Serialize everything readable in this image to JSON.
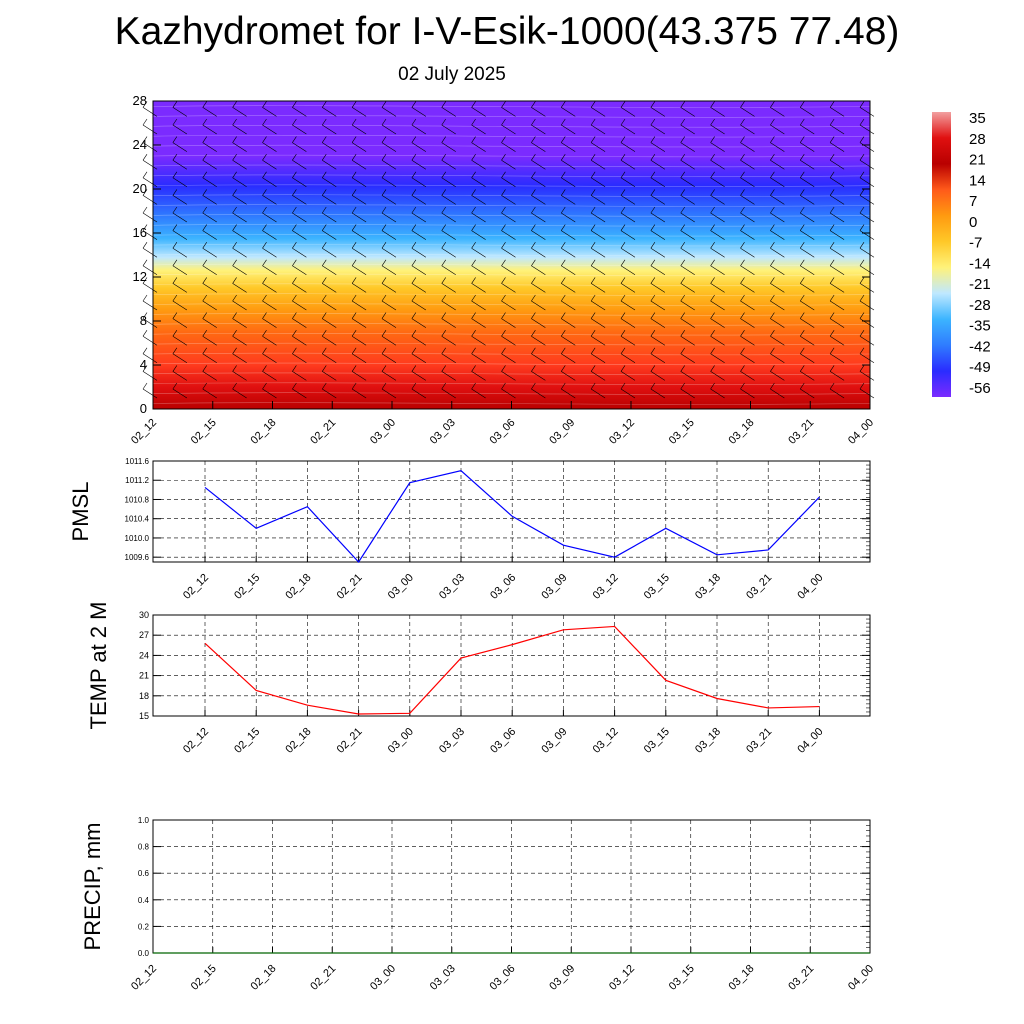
{
  "header": {
    "title": "Kazhydromet for I-V-Esik-1000(43.375 77.48)",
    "date": "02 July 2025"
  },
  "chart_data": [
    {
      "type": "heatmap",
      "title": "",
      "xlabel": "",
      "ylabel": "",
      "x_ticks": [
        "02_12",
        "02_15",
        "02_18",
        "02_21",
        "03_00",
        "03_03",
        "03_06",
        "03_09",
        "03_12",
        "03_15",
        "03_18",
        "03_21",
        "04_00"
      ],
      "y_ticks": [
        "0",
        "4",
        "8",
        "12",
        "16",
        "20",
        "24",
        "28"
      ],
      "ylim": [
        0,
        28
      ],
      "colorbar_labels": [
        "35",
        "28",
        "21",
        "14",
        "7",
        "0",
        "-7",
        "-14",
        "-21",
        "-28",
        "-35",
        "-42",
        "-49",
        "-56"
      ],
      "colors": [
        "#b90000",
        "#e01010",
        "#ff3b1e",
        "#ff6a12",
        "#ff9a10",
        "#ffc828",
        "#fff27a",
        "#bfe8ff",
        "#3cb4ff",
        "#2f7cff",
        "#2a2cff",
        "#7b2bff"
      ],
      "notes": "Temperature shading by height with wind barbs"
    },
    {
      "type": "line",
      "ylabel": "PMSL",
      "categories": [
        "02_12",
        "02_15",
        "02_18",
        "02_21",
        "03_00",
        "03_03",
        "03_06",
        "03_09",
        "03_12",
        "03_15",
        "03_18",
        "03_21",
        "04_00"
      ],
      "values": [
        1011.05,
        1010.2,
        1010.65,
        1009.5,
        1011.15,
        1011.4,
        1010.45,
        1009.85,
        1009.6,
        1010.2,
        1009.65,
        1009.75,
        1010.85
      ],
      "ylim": [
        1009.5,
        1011.6
      ],
      "y_ticks": [
        "1009.6",
        "1010.0",
        "1010.4",
        "1010.8",
        "1011.2",
        "1011.6"
      ],
      "color": "#0000ff",
      "grid": true
    },
    {
      "type": "line",
      "ylabel": "TEMP at 2 M",
      "categories": [
        "02_12",
        "02_15",
        "02_18",
        "02_21",
        "03_00",
        "03_03",
        "03_06",
        "03_09",
        "03_12",
        "03_15",
        "03_18",
        "03_21",
        "04_00"
      ],
      "values": [
        25.8,
        18.8,
        16.6,
        15.3,
        15.4,
        23.6,
        25.6,
        27.8,
        28.3,
        20.3,
        17.6,
        16.2,
        16.4
      ],
      "ylim": [
        15,
        30
      ],
      "y_ticks": [
        "15",
        "18",
        "21",
        "24",
        "27",
        "30"
      ],
      "color": "#ff0000",
      "grid": true
    },
    {
      "type": "line",
      "ylabel": "PRECIP, mm",
      "categories": [
        "02_12",
        "02_15",
        "02_18",
        "02_21",
        "03_00",
        "03_03",
        "03_06",
        "03_09",
        "03_12",
        "03_15",
        "03_18",
        "03_21",
        "04_00"
      ],
      "values": [
        0,
        0,
        0,
        0,
        0,
        0,
        0,
        0,
        0,
        0,
        0,
        0,
        0
      ],
      "ylim": [
        0,
        1
      ],
      "y_ticks": [
        "0.0",
        "0.2",
        "0.4",
        "0.6",
        "0.8",
        "1.0"
      ],
      "color": "#006400",
      "grid": true
    }
  ]
}
